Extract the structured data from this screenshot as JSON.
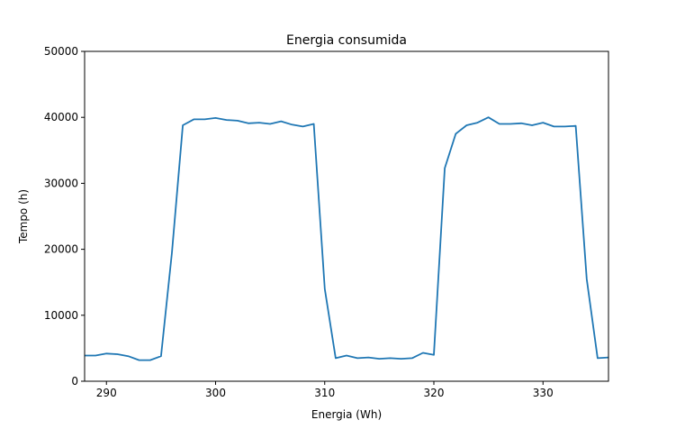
{
  "chart_data": {
    "type": "line",
    "title": "Energia consumida",
    "xlabel": "Energia (Wh)",
    "ylabel": "Tempo (h)",
    "xlim": [
      288,
      336
    ],
    "ylim": [
      0,
      50000
    ],
    "xticks": [
      290,
      300,
      310,
      320,
      330
    ],
    "yticks": [
      0,
      10000,
      20000,
      30000,
      40000,
      50000
    ],
    "grid": false,
    "series": [
      {
        "color": "#1f77b4",
        "x": [
          288,
          289,
          290,
          291,
          292,
          293,
          294,
          295,
          296,
          297,
          298,
          299,
          300,
          301,
          302,
          303,
          304,
          305,
          306,
          307,
          308,
          309,
          310,
          311,
          312,
          313,
          314,
          315,
          316,
          317,
          318,
          319,
          320,
          321,
          322,
          323,
          324,
          325,
          326,
          327,
          328,
          329,
          330,
          331,
          332,
          333,
          334,
          335,
          336
        ],
        "y": [
          3900,
          3900,
          4200,
          4100,
          3800,
          3200,
          3200,
          3800,
          19500,
          38800,
          39700,
          39700,
          39900,
          39600,
          39500,
          39100,
          39200,
          39000,
          39400,
          38900,
          38600,
          39000,
          14000,
          3500,
          3900,
          3500,
          3600,
          3400,
          3500,
          3400,
          3500,
          4300,
          4000,
          32300,
          37500,
          38800,
          39200,
          40000,
          39000,
          39000,
          39100,
          38800,
          39200,
          38600,
          38600,
          38700,
          15500,
          3500,
          3600
        ]
      }
    ]
  }
}
